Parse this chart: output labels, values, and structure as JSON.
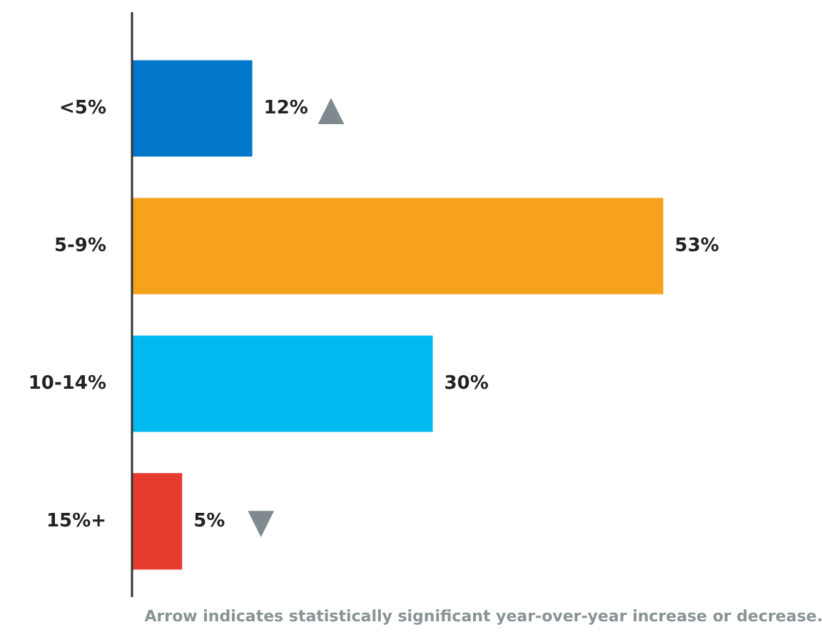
{
  "chart_data": {
    "type": "bar",
    "orientation": "horizontal",
    "categories": [
      "<5%",
      "5-9%",
      "10-14%",
      "15%+"
    ],
    "values": [
      12,
      53,
      30,
      5
    ],
    "colors": [
      "#0077c8",
      "#f7a21d",
      "#00b9ef",
      "#e63c2f"
    ],
    "value_labels": [
      "12%",
      "53%",
      "30%",
      "5%"
    ],
    "tick_labels": "y",
    "grid": false,
    "annotations": [
      {
        "text": "▲",
        "x": 12,
        "y": "<5%"
      },
      {
        "text": "▼",
        "x": 5,
        "y": "15%+"
      },
      "Arrow indicates statistically significant year-over-year increase or decrease."
    ]
  }
}
